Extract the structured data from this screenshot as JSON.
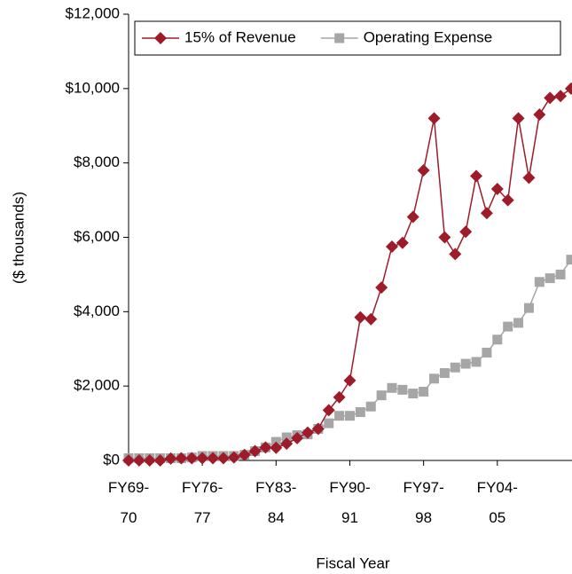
{
  "chart_data": {
    "type": "line",
    "x_label": "Fiscal Year",
    "y_label": "($ thousands)",
    "categories": [
      "FY69-70",
      null,
      null,
      null,
      null,
      null,
      null,
      "FY76-77",
      null,
      null,
      null,
      null,
      null,
      null,
      "FY83-84",
      null,
      null,
      null,
      null,
      null,
      null,
      "FY90-91",
      null,
      null,
      null,
      null,
      null,
      null,
      "FY97-98",
      null,
      null,
      null,
      null,
      null,
      null,
      "FY04-05",
      null,
      null,
      null,
      null,
      null,
      null,
      null
    ],
    "series": [
      {
        "name": "15% of Revenue",
        "color": "#9e1b2a",
        "marker": "diamond",
        "values": [
          0,
          0,
          0,
          0,
          50,
          60,
          60,
          60,
          60,
          60,
          80,
          150,
          250,
          350,
          340,
          450,
          600,
          750,
          850,
          1350,
          1700,
          2150,
          3850,
          3800,
          4650,
          5750,
          5850,
          6550,
          7800,
          9200,
          6000,
          5550,
          6150,
          7650,
          6650,
          7300,
          7000,
          9200,
          7600,
          9300,
          9750,
          9800,
          10000
        ]
      },
      {
        "name": "Operating Expense",
        "color": "#a6a6a6",
        "marker": "square",
        "values": [
          60,
          60,
          60,
          60,
          60,
          60,
          80,
          120,
          120,
          120,
          120,
          150,
          250,
          350,
          500,
          620,
          680,
          700,
          850,
          1000,
          1200,
          1200,
          1300,
          1450,
          1750,
          1950,
          1900,
          1800,
          1850,
          2200,
          2350,
          2500,
          2600,
          2650,
          2900,
          3250,
          3600,
          3700,
          4100,
          4800,
          4900,
          5000,
          5400
        ]
      }
    ],
    "ylim": [
      0,
      12000
    ],
    "yticks": [
      {
        "value": 0,
        "label": "$0"
      },
      {
        "value": 2000,
        "label": "$2,000"
      },
      {
        "value": 4000,
        "label": "$4,000"
      },
      {
        "value": 6000,
        "label": "$6,000"
      },
      {
        "value": 8000,
        "label": "$8,000"
      },
      {
        "value": 10000,
        "label": "$10,000"
      },
      {
        "value": 12000,
        "label": "$12,000"
      }
    ],
    "legend": "top"
  }
}
